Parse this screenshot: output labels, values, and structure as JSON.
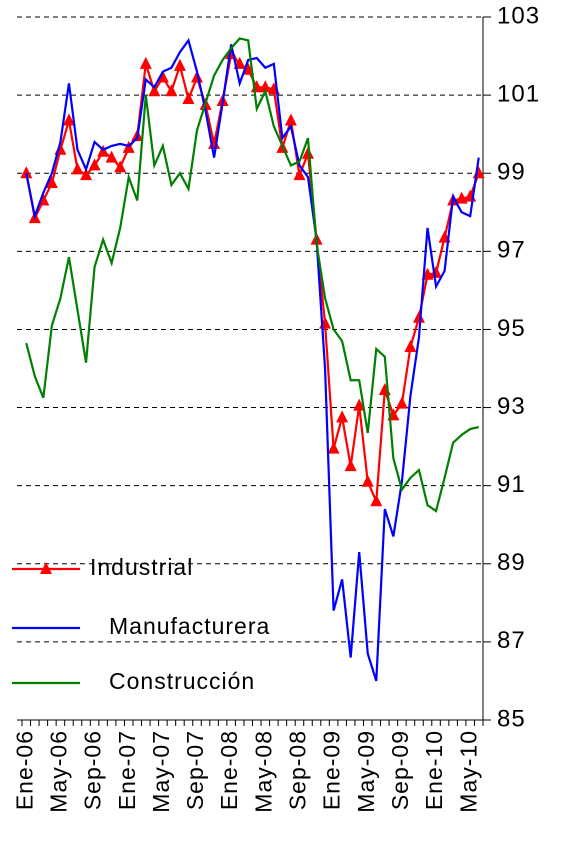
{
  "chart_data": {
    "type": "line",
    "categories": [
      "Ene-06",
      null,
      null,
      null,
      "May-06",
      null,
      null,
      null,
      "Sep-06",
      null,
      null,
      null,
      "Ene-07",
      null,
      null,
      null,
      "May-07",
      null,
      null,
      null,
      "Sep-07",
      null,
      null,
      null,
      "Ene-08",
      null,
      null,
      null,
      "May-08",
      null,
      null,
      null,
      "Sep-08",
      null,
      null,
      null,
      "Ene-09",
      null,
      null,
      null,
      "May-09",
      null,
      null,
      null,
      "Sep-09",
      null,
      null,
      null,
      "Ene-10",
      null,
      null,
      null,
      "May-10",
      null
    ],
    "series": [
      {
        "name": "Industrial",
        "color": "#ff0000",
        "marker": "triangle",
        "values": [
          99.0,
          97.85,
          98.3,
          98.75,
          99.6,
          100.35,
          99.1,
          98.95,
          99.2,
          99.55,
          99.4,
          99.15,
          99.65,
          99.95,
          101.8,
          101.1,
          101.45,
          101.1,
          101.75,
          100.9,
          101.45,
          100.75,
          99.75,
          100.85,
          102.05,
          101.8,
          101.65,
          101.2,
          101.2,
          101.15,
          99.65,
          100.35,
          98.95,
          99.5,
          97.3,
          95.15,
          91.95,
          92.75,
          91.5,
          93.05,
          91.1,
          90.6,
          93.45,
          92.8,
          93.1,
          94.55,
          95.3,
          96.4,
          96.45,
          97.35,
          98.3,
          98.35,
          98.4,
          99.0
        ]
      },
      {
        "name": "Manufacturera",
        "color": "#0000ff",
        "values": [
          99.0,
          97.9,
          98.5,
          99.0,
          99.8,
          101.3,
          99.6,
          99.1,
          99.8,
          99.6,
          99.7,
          99.75,
          99.7,
          99.9,
          101.4,
          101.2,
          101.6,
          101.7,
          102.1,
          102.4,
          101.6,
          100.6,
          99.4,
          100.8,
          102.3,
          101.3,
          101.9,
          101.95,
          101.7,
          101.8,
          99.9,
          100.2,
          99.2,
          98.9,
          97.3,
          94.0,
          87.8,
          88.6,
          86.6,
          89.3,
          86.7,
          86.0,
          90.4,
          89.7,
          91.1,
          93.3,
          94.8,
          97.6,
          96.1,
          96.5,
          98.4,
          98.0,
          97.9,
          99.4
        ]
      },
      {
        "name": "Construcción",
        "color": "#008000",
        "values": [
          94.65,
          93.8,
          93.25,
          95.1,
          95.8,
          96.85,
          95.5,
          94.15,
          96.6,
          97.3,
          96.7,
          97.6,
          98.9,
          98.3,
          101.0,
          99.2,
          99.7,
          98.7,
          99.0,
          98.6,
          100.1,
          100.8,
          101.5,
          101.9,
          102.2,
          102.45,
          102.4,
          100.65,
          101.1,
          100.2,
          99.7,
          99.2,
          99.3,
          99.9,
          97.2,
          95.8,
          95.0,
          94.7,
          93.7,
          93.7,
          92.35,
          94.5,
          94.3,
          91.7,
          90.9,
          91.2,
          91.4,
          90.5,
          90.35,
          91.2,
          92.1,
          92.3,
          92.45,
          92.5
        ]
      }
    ],
    "ylim": [
      85,
      103
    ],
    "yticks": [
      85,
      87,
      89,
      91,
      93,
      95,
      97,
      99,
      101,
      103
    ],
    "y_axis_side": "right",
    "grid": true,
    "legend": "lower left"
  }
}
